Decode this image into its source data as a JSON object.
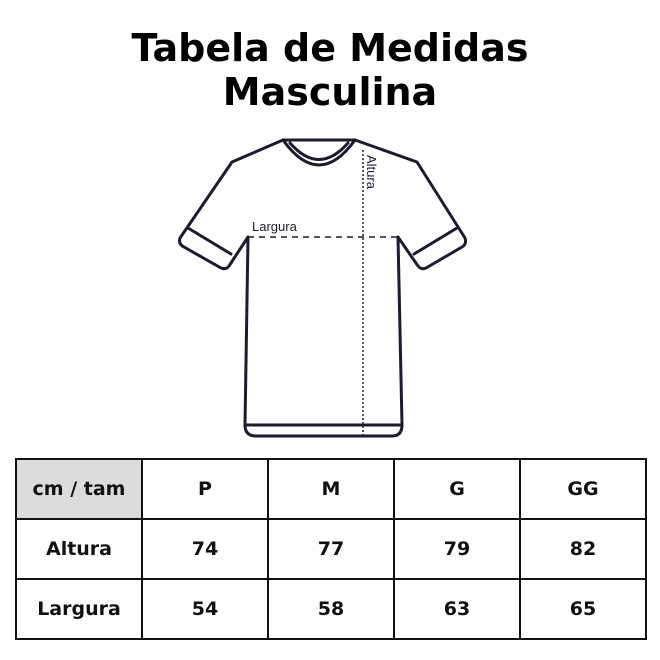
{
  "title_line1": "Tabela de Medidas",
  "title_line2": "Masculina",
  "diagram": {
    "width_label": "Largura",
    "height_label": "Altura",
    "line_color": "#1b1b33"
  },
  "table": {
    "corner": "cm / tam",
    "corner_bg": "#dcdcdf",
    "sizes": [
      "P",
      "M",
      "G",
      "GG"
    ],
    "rows": [
      {
        "label": "Altura",
        "values": [
          "74",
          "77",
          "79",
          "82"
        ]
      },
      {
        "label": "Largura",
        "values": [
          "54",
          "58",
          "63",
          "65"
        ]
      }
    ]
  }
}
